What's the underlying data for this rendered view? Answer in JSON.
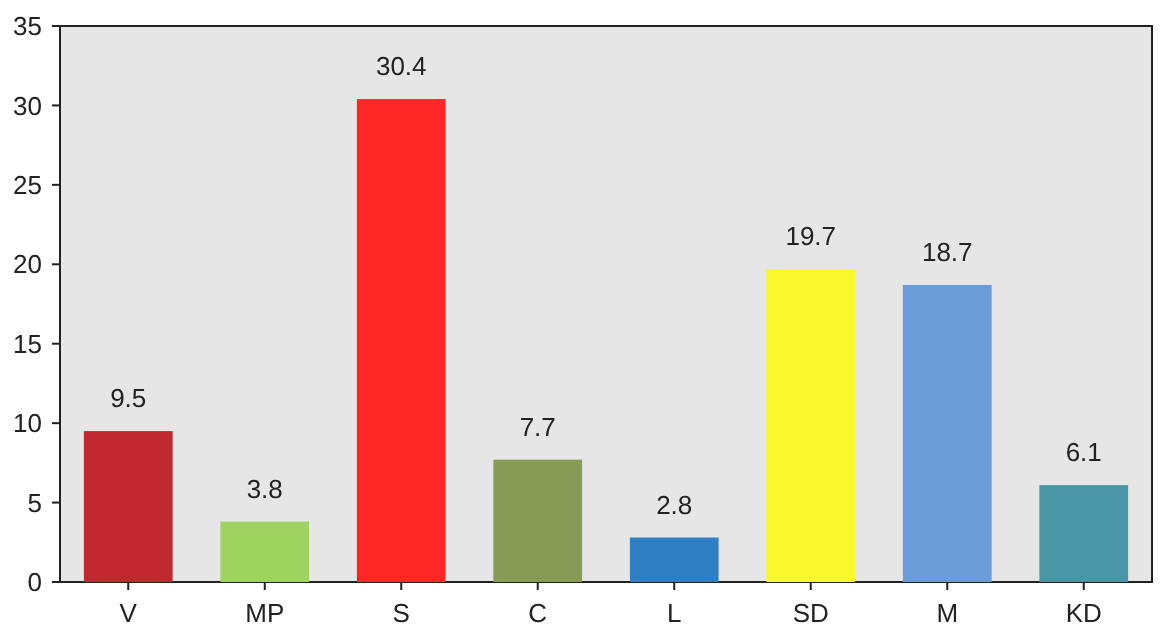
{
  "chart_data": {
    "type": "bar",
    "categories": [
      "V",
      "MP",
      "S",
      "C",
      "L",
      "SD",
      "M",
      "KD"
    ],
    "values": [
      9.5,
      3.8,
      30.4,
      7.7,
      2.8,
      19.7,
      18.7,
      6.1
    ],
    "colors": [
      "#c0282d",
      "#9fd35f",
      "#ff2626",
      "#869c52",
      "#2e7fc4",
      "#f8f82a",
      "#6a9cd8",
      "#4a96a6"
    ],
    "ylim": [
      0,
      35
    ],
    "yticks": [
      0,
      5,
      10,
      15,
      20,
      25,
      30,
      35
    ],
    "grid": false,
    "data_labels": true
  }
}
